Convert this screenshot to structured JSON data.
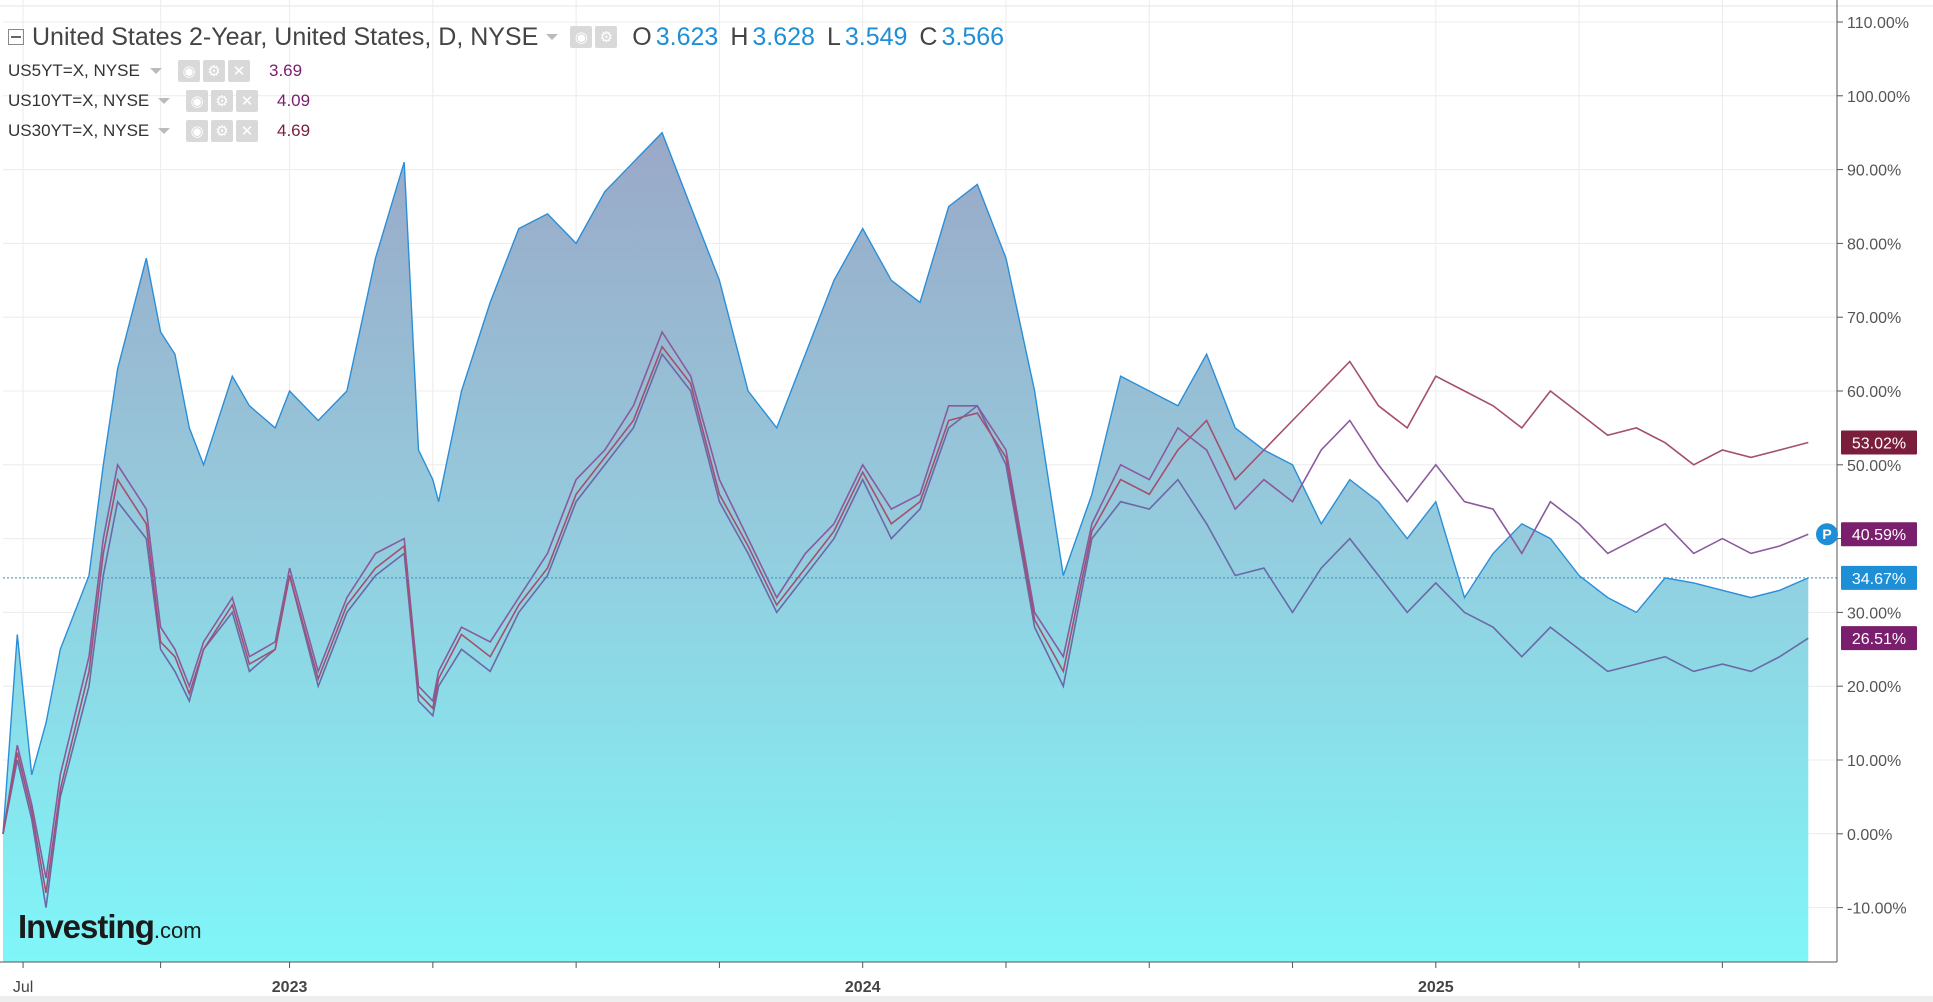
{
  "header": {
    "title": "United States 2-Year, United States, D, NYSE",
    "ohlc": [
      {
        "key": "O",
        "value": "3.623"
      },
      {
        "key": "H",
        "value": "3.628"
      },
      {
        "key": "L",
        "value": "3.549"
      },
      {
        "key": "C",
        "value": "3.566"
      }
    ]
  },
  "compare_symbols": [
    {
      "symbol": "US5YT=X, NYSE",
      "value": "3.69",
      "color": "#7a1e6e"
    },
    {
      "symbol": "US10YT=X, NYSE",
      "value": "4.09",
      "color": "#7a1e6e"
    },
    {
      "symbol": "US30YT=X, NYSE",
      "value": "4.69",
      "color": "#7a1e3c"
    }
  ],
  "logo": {
    "main": "Investing",
    "domain": ".com"
  },
  "price_marker": {
    "label": "P"
  },
  "chart_data": {
    "type": "area",
    "title": "United States 2-Year, United States, D, NYSE",
    "ylim": [
      -17,
      110
    ],
    "y_ticks": [
      "110.00%",
      "100.00%",
      "90.00%",
      "80.00%",
      "70.00%",
      "60.00%",
      "50.00%",
      "40.00%",
      "30.00%",
      "20.00%",
      "10.00%",
      "0.00%",
      "-10.00%"
    ],
    "y_tick_values": [
      110,
      100,
      90,
      80,
      70,
      60,
      50,
      40,
      30,
      20,
      10,
      0,
      -10
    ],
    "x_ticks": [
      {
        "label": "Jul",
        "t": 0.07
      },
      {
        "label": "2023",
        "t": 1.0
      },
      {
        "label": "2024",
        "t": 3.0
      },
      {
        "label": "2025",
        "t": 5.0
      }
    ],
    "xlim": [
      0,
      6.4
    ],
    "grid": true,
    "reference_line": 34.67,
    "series": [
      {
        "name": "United States 2-Year",
        "style": "area",
        "color": "#2a8fd8",
        "label_color": "#1e8fd6",
        "last_label": "34.67%",
        "x": [
          0,
          0.05,
          0.1,
          0.15,
          0.2,
          0.3,
          0.35,
          0.4,
          0.5,
          0.55,
          0.6,
          0.65,
          0.7,
          0.8,
          0.86,
          0.95,
          1.0,
          1.1,
          1.2,
          1.3,
          1.4,
          1.45,
          1.5,
          1.52,
          1.6,
          1.7,
          1.8,
          1.9,
          2.0,
          2.1,
          2.2,
          2.3,
          2.4,
          2.5,
          2.6,
          2.7,
          2.8,
          2.9,
          3.0,
          3.1,
          3.2,
          3.3,
          3.4,
          3.5,
          3.6,
          3.7,
          3.8,
          3.9,
          4.0,
          4.1,
          4.2,
          4.3,
          4.4,
          4.5,
          4.6,
          4.7,
          4.8,
          4.9,
          5.0,
          5.1,
          5.2,
          5.3,
          5.4,
          5.5,
          5.6,
          5.7,
          5.8,
          5.9,
          6.0,
          6.1,
          6.2,
          6.3
        ],
        "values": [
          0,
          27,
          8,
          15,
          25,
          35,
          50,
          63,
          78,
          68,
          65,
          55,
          50,
          62,
          58,
          55,
          60,
          56,
          60,
          78,
          91,
          52,
          48,
          45,
          60,
          72,
          82,
          84,
          80,
          87,
          91,
          95,
          85,
          75,
          60,
          55,
          65,
          75,
          82,
          75,
          72,
          85,
          88,
          78,
          60,
          35,
          46,
          62,
          60,
          58,
          65,
          55,
          52,
          50,
          42,
          48,
          45,
          40,
          45,
          32,
          38,
          42,
          40,
          35,
          32,
          30,
          34.67,
          34,
          33,
          32,
          33,
          34.67
        ]
      },
      {
        "name": "US5YT=X, NYSE",
        "style": "line",
        "color": "#6b68a8",
        "label_color": "#7a1e6e",
        "last_label": "26.51%",
        "x": [
          0,
          0.05,
          0.1,
          0.15,
          0.2,
          0.3,
          0.35,
          0.4,
          0.5,
          0.55,
          0.6,
          0.65,
          0.7,
          0.8,
          0.86,
          0.95,
          1.0,
          1.1,
          1.2,
          1.3,
          1.4,
          1.45,
          1.5,
          1.52,
          1.6,
          1.7,
          1.8,
          1.9,
          2.0,
          2.1,
          2.2,
          2.3,
          2.4,
          2.5,
          2.6,
          2.7,
          2.8,
          2.9,
          3.0,
          3.1,
          3.2,
          3.3,
          3.4,
          3.5,
          3.6,
          3.7,
          3.8,
          3.9,
          4.0,
          4.1,
          4.2,
          4.3,
          4.4,
          4.5,
          4.6,
          4.7,
          4.8,
          4.9,
          5.0,
          5.1,
          5.2,
          5.3,
          5.4,
          5.5,
          5.6,
          5.7,
          5.8,
          5.9,
          6.0,
          6.1,
          6.2,
          6.3
        ],
        "values": [
          0,
          10,
          2,
          -10,
          5,
          20,
          35,
          45,
          40,
          25,
          22,
          18,
          25,
          30,
          22,
          25,
          35,
          20,
          30,
          35,
          38,
          18,
          16,
          20,
          25,
          22,
          30,
          35,
          45,
          50,
          55,
          65,
          60,
          45,
          38,
          30,
          35,
          40,
          48,
          40,
          44,
          55,
          58,
          50,
          28,
          20,
          40,
          45,
          44,
          48,
          42,
          35,
          36,
          30,
          36,
          40,
          35,
          30,
          34,
          30,
          28,
          24,
          28,
          25,
          22,
          23,
          24,
          22,
          23,
          22,
          24,
          26.51
        ]
      },
      {
        "name": "US10YT=X, NYSE",
        "style": "line",
        "color": "#8a5a9e",
        "label_color": "#7a1e6e",
        "last_label": "40.59%",
        "x": [
          0,
          0.05,
          0.1,
          0.15,
          0.2,
          0.3,
          0.35,
          0.4,
          0.5,
          0.55,
          0.6,
          0.65,
          0.7,
          0.8,
          0.86,
          0.95,
          1.0,
          1.1,
          1.2,
          1.3,
          1.4,
          1.45,
          1.5,
          1.52,
          1.6,
          1.7,
          1.8,
          1.9,
          2.0,
          2.1,
          2.2,
          2.3,
          2.4,
          2.5,
          2.6,
          2.7,
          2.8,
          2.9,
          3.0,
          3.1,
          3.2,
          3.3,
          3.4,
          3.5,
          3.6,
          3.7,
          3.8,
          3.9,
          4.0,
          4.1,
          4.2,
          4.3,
          4.4,
          4.5,
          4.6,
          4.7,
          4.8,
          4.9,
          5.0,
          5.1,
          5.2,
          5.3,
          5.4,
          5.5,
          5.6,
          5.7,
          5.8,
          5.9,
          6.0,
          6.1,
          6.2,
          6.3
        ],
        "values": [
          0,
          12,
          4,
          -6,
          8,
          24,
          40,
          50,
          44,
          28,
          25,
          20,
          26,
          32,
          24,
          26,
          36,
          22,
          32,
          38,
          40,
          20,
          18,
          22,
          28,
          26,
          32,
          38,
          48,
          52,
          58,
          68,
          62,
          48,
          40,
          32,
          38,
          42,
          50,
          44,
          46,
          58,
          58,
          52,
          30,
          24,
          42,
          50,
          48,
          55,
          52,
          44,
          48,
          45,
          52,
          56,
          50,
          45,
          50,
          45,
          44,
          38,
          45,
          42,
          38,
          40,
          42,
          38,
          40,
          38,
          39,
          40.59
        ]
      },
      {
        "name": "US30YT=X, NYSE",
        "style": "line",
        "color": "#a3506f",
        "label_color": "#7a1e3c",
        "last_label": "53.02%",
        "x": [
          0,
          0.05,
          0.1,
          0.15,
          0.2,
          0.3,
          0.35,
          0.4,
          0.5,
          0.55,
          0.6,
          0.65,
          0.7,
          0.8,
          0.86,
          0.95,
          1.0,
          1.1,
          1.2,
          1.3,
          1.4,
          1.45,
          1.5,
          1.52,
          1.6,
          1.7,
          1.8,
          1.9,
          2.0,
          2.1,
          2.2,
          2.3,
          2.4,
          2.5,
          2.6,
          2.7,
          2.8,
          2.9,
          3.0,
          3.1,
          3.2,
          3.3,
          3.4,
          3.5,
          3.6,
          3.7,
          3.8,
          3.9,
          4.0,
          4.1,
          4.2,
          4.3,
          4.4,
          4.5,
          4.6,
          4.7,
          4.8,
          4.9,
          5.0,
          5.1,
          5.2,
          5.3,
          5.4,
          5.5,
          5.6,
          5.7,
          5.8,
          5.9,
          6.0,
          6.1,
          6.2,
          6.3
        ],
        "values": [
          0,
          11,
          3,
          -8,
          6,
          22,
          38,
          48,
          42,
          26,
          24,
          19,
          25,
          31,
          23,
          25,
          35,
          21,
          31,
          36,
          39,
          19,
          17,
          21,
          27,
          24,
          31,
          36,
          46,
          51,
          56,
          66,
          61,
          46,
          39,
          31,
          36,
          41,
          49,
          42,
          45,
          56,
          57,
          51,
          29,
          22,
          41,
          48,
          46,
          52,
          56,
          48,
          52,
          56,
          60,
          64,
          58,
          55,
          62,
          60,
          58,
          55,
          60,
          57,
          54,
          55,
          53,
          50,
          52,
          51,
          52,
          53.02
        ]
      }
    ]
  }
}
